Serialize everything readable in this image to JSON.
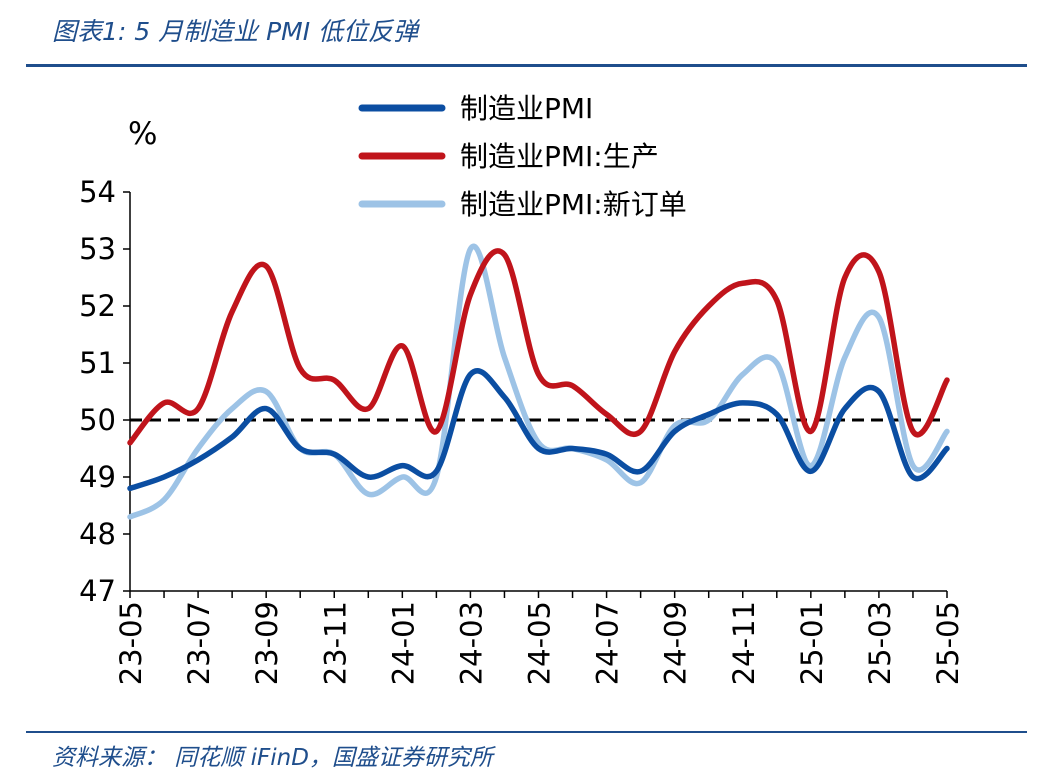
{
  "figure_title": "图表1:  5 月制造业 PMI 低位反弹",
  "source": "资料来源：  同花顺 iFinD，国盛证券研究所",
  "chart_data": {
    "type": "line",
    "unit_label": "%",
    "ylim": [
      47,
      54
    ],
    "yticks": [
      47,
      48,
      49,
      50,
      51,
      52,
      53,
      54
    ],
    "reference_line": 50,
    "x": [
      "23-05",
      "23-06",
      "23-07",
      "23-08",
      "23-09",
      "23-10",
      "23-11",
      "23-12",
      "24-01",
      "24-02",
      "24-03",
      "24-04",
      "24-05",
      "24-06",
      "24-07",
      "24-08",
      "24-09",
      "24-10",
      "24-11",
      "24-12",
      "25-01",
      "25-02",
      "25-03",
      "25-04",
      "25-05"
    ],
    "xtick_labels": [
      "23-05",
      "23-07",
      "23-09",
      "23-11",
      "24-01",
      "24-03",
      "24-05",
      "24-07",
      "24-09",
      "24-11",
      "25-01",
      "25-03",
      "25-05"
    ],
    "legend_position": "top",
    "series": [
      {
        "name": "制造业PMI",
        "color": "#0b4ea2",
        "values": [
          48.8,
          49.0,
          49.3,
          49.7,
          50.2,
          49.5,
          49.4,
          49.0,
          49.2,
          49.1,
          50.8,
          50.4,
          49.5,
          49.5,
          49.4,
          49.1,
          49.8,
          50.1,
          50.3,
          50.1,
          49.1,
          50.2,
          50.5,
          49.0,
          49.5
        ]
      },
      {
        "name": "制造业PMI:生产",
        "color": "#c0141b",
        "values": [
          49.6,
          50.3,
          50.2,
          51.9,
          52.7,
          50.9,
          50.7,
          50.2,
          51.3,
          49.8,
          52.2,
          52.9,
          50.8,
          50.6,
          50.1,
          49.8,
          51.2,
          52.0,
          52.4,
          52.1,
          49.8,
          52.5,
          52.6,
          49.8,
          50.7
        ]
      },
      {
        "name": "制造业PMI:新订单",
        "color": "#9dc3e6",
        "values": [
          48.3,
          48.6,
          49.5,
          50.2,
          50.5,
          49.5,
          49.4,
          48.7,
          49.0,
          49.0,
          53.0,
          51.1,
          49.6,
          49.5,
          49.3,
          48.9,
          49.9,
          50.0,
          50.8,
          51.0,
          49.2,
          51.1,
          51.8,
          49.2,
          49.8
        ]
      }
    ]
  }
}
